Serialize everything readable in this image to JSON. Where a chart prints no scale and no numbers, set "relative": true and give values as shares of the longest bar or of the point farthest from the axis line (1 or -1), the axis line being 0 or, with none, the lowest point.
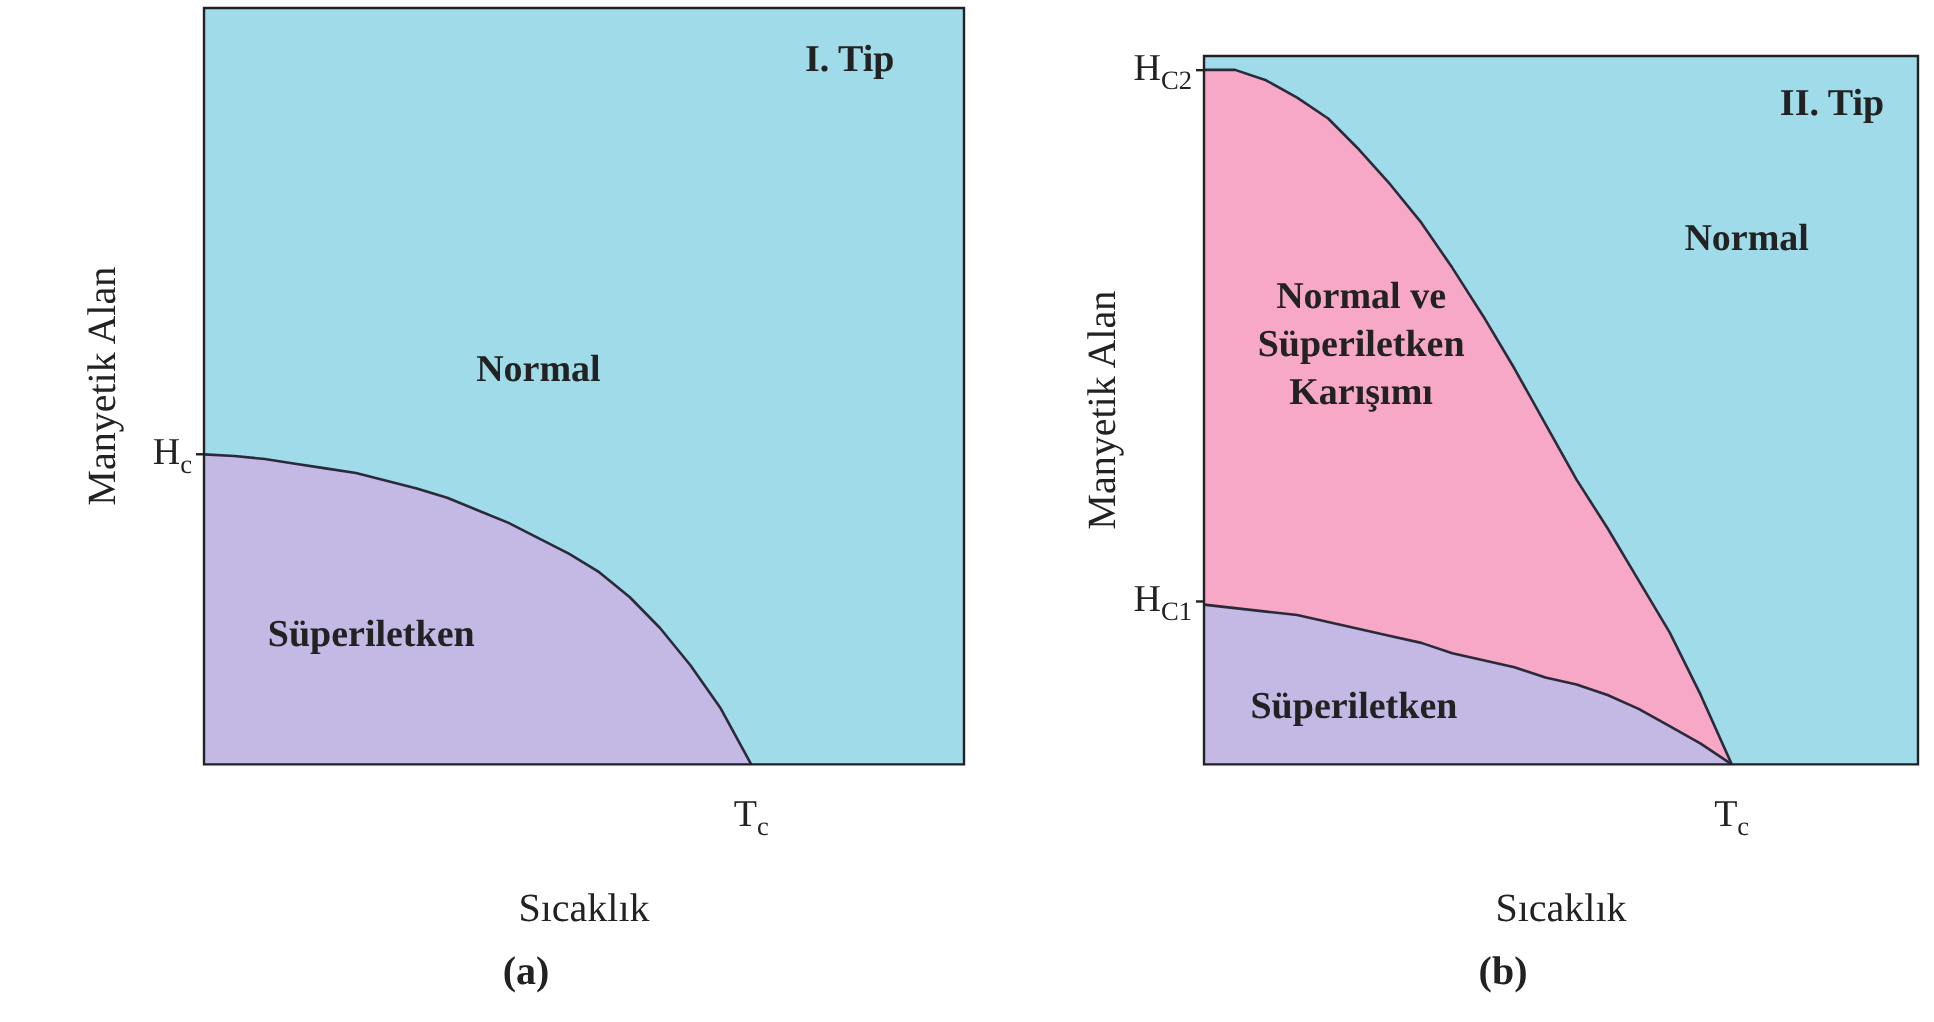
{
  "chart_data": [
    {
      "type": "area",
      "relative": true,
      "title": "(a)",
      "xlabel": "Sıcaklık",
      "ylabel": "Manyetik Alan",
      "legend": false,
      "categories": [
        null,
        null,
        null,
        null,
        null,
        null,
        null,
        null,
        null,
        null,
        null,
        null,
        null,
        null,
        null,
        null,
        null,
        null,
        null,
        null,
        null,
        null,
        null,
        null,
        null,
        null
      ],
      "series": [
        {
          "color": "#c4b8e4",
          "values": [
            1,
            0.995,
            0.985,
            0.97,
            0.955,
            0.94,
            0.915,
            0.89,
            0.86,
            0.82,
            0.78,
            0.73,
            0.68,
            0.62,
            0.54,
            0.44,
            0.32,
            0.18,
            0,
            null,
            null,
            null,
            null,
            null,
            null,
            null
          ]
        }
      ],
      "annotations": [
        "H$_{c}$",
        "T$_{c}$",
        "I. Tip",
        "Normal",
        "Süperiletken"
      ]
    },
    {
      "type": "area",
      "relative": true,
      "title": "(b)",
      "xlabel": "Sıcaklık",
      "ylabel": "Manyetik Alan",
      "legend": false,
      "categories": [
        null,
        null,
        null,
        null,
        null,
        null,
        null,
        null,
        null,
        null,
        null,
        null,
        null,
        null,
        null,
        null,
        null,
        null,
        null,
        null,
        null,
        null,
        null,
        null
      ],
      "series": [
        {
          "color": "#f7a8c6",
          "values": [
            1,
            1,
            0.985,
            0.96,
            0.93,
            0.885,
            0.835,
            0.78,
            0.715,
            0.645,
            0.57,
            0.49,
            0.41,
            0.34,
            0.265,
            0.19,
            0.1,
            0,
            null,
            null,
            null,
            null,
            null,
            null
          ]
        },
        {
          "color": "#c4b8e4",
          "values": [
            0.23,
            0.225,
            0.22,
            0.215,
            0.205,
            0.195,
            0.185,
            0.175,
            0.16,
            0.15,
            0.14,
            0.125,
            0.115,
            0.1,
            0.08,
            0.055,
            0.03,
            0,
            null,
            null,
            null,
            null,
            null,
            null
          ]
        }
      ],
      "annotations": [
        "H$_{C2}$",
        "H$_{C1}$",
        "T$_{c}$",
        "II. Tip",
        "Normal",
        "Normal ve\nSüperiletken\nKarışımı",
        "Süperiletken"
      ]
    }
  ]
}
